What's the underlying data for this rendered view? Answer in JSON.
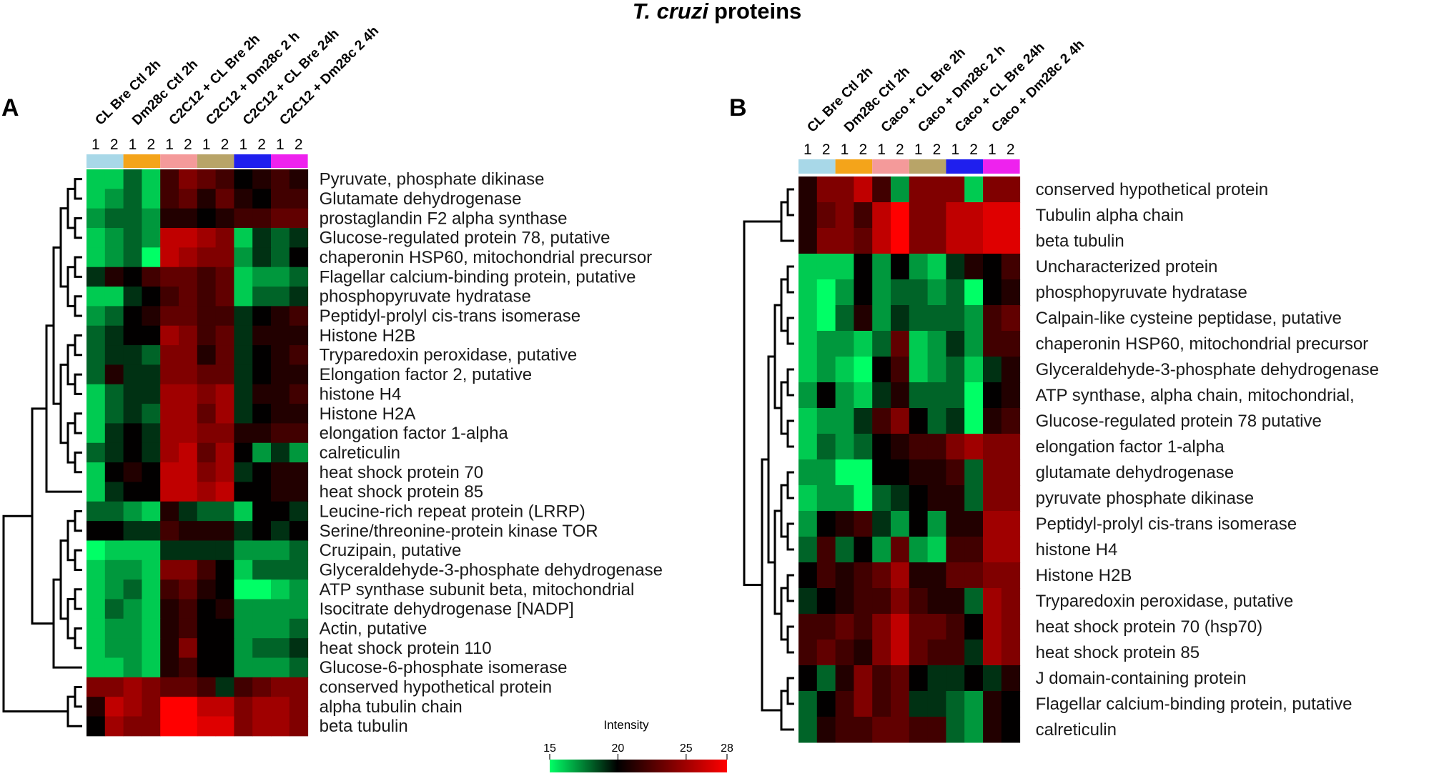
{
  "figure": {
    "title_italic": "T. cruzi",
    "title_rest": "proteins"
  },
  "chart_data": [
    {
      "type": "heatmap",
      "panel": "A",
      "columns": [
        "CL Bre Ctl 2h",
        "Dm28c Ctl 2h",
        "C2C12 + CL Bre 2h",
        "C2C12 + Dm28c 2 h",
        "C2C12 + CL Bre 24h",
        "C2C12 + Dm28c 2 4h"
      ],
      "column_colors": [
        "#a8d8e8",
        "#f4a41a",
        "#f49a9a",
        "#b8a468",
        "#1f1fee",
        "#ee22ee"
      ],
      "replicates": [
        "1",
        "2"
      ],
      "rows": [
        "Pyruvate, phosphate dikinase",
        "Glutamate dehydrogenase",
        "prostaglandin F2 alpha synthase",
        "Glucose-regulated protein 78, putative",
        "chaperonin HSP60, mitochondrial precursor",
        "Flagellar calcium-binding protein, putative",
        "phosphopyruvate hydratase",
        "Peptidyl-prolyl cis-trans isomerase",
        "Histone H2B",
        "Tryparedoxin peroxidase, putative",
        "Elongation factor 2, putative",
        "histone H4",
        "Histone H2A",
        "elongation factor 1-alpha",
        "calreticulin",
        "heat shock protein 70",
        "heat shock protein 85",
        "Leucine-rich repeat protein (LRRP)",
        "Serine/threonine-protein kinase TOR",
        "Cruzipain, putative",
        "Glyceraldehyde-3-phosphate dehydrogenase",
        "ATP synthase subunit beta, mitochondrial",
        "Isocitrate dehydrogenase [NADP]",
        "Actin, putative",
        "heat shock protein 110",
        "Glucose-6-phosphate isomerase",
        "conserved hypothetical protein",
        "alpha tubulin chain",
        "beta tubulin"
      ],
      "values": [
        [
          16,
          16,
          18,
          16,
          22,
          24,
          23,
          22,
          20,
          21,
          22,
          21
        ],
        [
          16,
          17,
          18,
          16,
          22,
          23,
          21,
          23,
          21,
          20,
          22,
          22
        ],
        [
          17,
          18,
          18,
          17,
          21,
          21,
          20,
          21,
          22,
          22,
          23,
          23
        ],
        [
          16,
          17,
          18,
          17,
          26,
          26,
          25,
          24,
          16,
          19,
          18,
          19
        ],
        [
          16,
          17,
          18,
          15,
          26,
          25,
          24,
          24,
          17,
          19,
          18,
          20
        ],
        [
          19,
          21,
          20,
          22,
          23,
          23,
          22,
          23,
          16,
          17,
          17,
          18
        ],
        [
          16,
          16,
          19,
          20,
          22,
          23,
          22,
          23,
          16,
          18,
          18,
          19
        ],
        [
          17,
          18,
          20,
          21,
          23,
          23,
          22,
          22,
          19,
          20,
          21,
          22
        ],
        [
          18,
          19,
          20,
          20,
          25,
          24,
          22,
          23,
          19,
          21,
          21,
          21
        ],
        [
          18,
          19,
          19,
          18,
          24,
          24,
          21,
          23,
          19,
          20,
          21,
          22
        ],
        [
          18,
          21,
          19,
          19,
          24,
          24,
          23,
          23,
          19,
          20,
          21,
          21
        ],
        [
          16,
          18,
          19,
          19,
          25,
          25,
          24,
          25,
          19,
          21,
          21,
          22
        ],
        [
          16,
          18,
          19,
          18,
          25,
          25,
          23,
          25,
          19,
          20,
          21,
          21
        ],
        [
          16,
          19,
          20,
          19,
          25,
          25,
          24,
          24,
          21,
          21,
          22,
          22
        ],
        [
          18,
          19,
          20,
          19,
          25,
          26,
          23,
          25,
          20,
          17,
          19,
          17
        ],
        [
          16,
          20,
          21,
          20,
          26,
          26,
          24,
          25,
          19,
          20,
          21,
          21
        ],
        [
          16,
          19,
          20,
          20,
          26,
          26,
          25,
          26,
          20,
          20,
          21,
          21
        ],
        [
          18,
          18,
          17,
          16,
          21,
          19,
          18,
          18,
          16,
          20,
          20,
          19
        ],
        [
          20,
          20,
          19,
          19,
          22,
          21,
          21,
          21,
          19,
          20,
          19,
          20
        ],
        [
          15,
          16,
          16,
          16,
          19,
          19,
          19,
          19,
          17,
          17,
          17,
          18
        ],
        [
          16,
          17,
          17,
          16,
          24,
          24,
          22,
          20,
          16,
          18,
          18,
          18
        ],
        [
          16,
          17,
          18,
          16,
          22,
          23,
          21,
          20,
          15,
          15,
          16,
          17
        ],
        [
          16,
          18,
          17,
          16,
          21,
          22,
          20,
          21,
          17,
          17,
          17,
          17
        ],
        [
          16,
          17,
          17,
          16,
          21,
          22,
          20,
          20,
          17,
          17,
          17,
          18
        ],
        [
          16,
          17,
          17,
          16,
          21,
          24,
          20,
          20,
          17,
          18,
          18,
          19
        ],
        [
          16,
          16,
          17,
          16,
          21,
          22,
          20,
          20,
          17,
          17,
          17,
          18
        ],
        [
          24,
          24,
          25,
          24,
          23,
          23,
          22,
          19,
          22,
          23,
          24,
          24
        ],
        [
          21,
          26,
          25,
          24,
          28,
          28,
          26,
          26,
          24,
          25,
          25,
          24
        ],
        [
          20,
          25,
          24,
          24,
          28,
          28,
          27,
          27,
          24,
          25,
          25,
          24
        ]
      ],
      "cluster_groups": [
        "1-17",
        "18-26",
        "27-29"
      ]
    },
    {
      "type": "heatmap",
      "panel": "B",
      "columns": [
        "CL Bre Ctl 2h",
        "Dm28c Ctl 2h",
        "Caco + CL Bre 2h",
        "Caco + Dm28c 2 h",
        "Caco + CL Bre 24h",
        "Caco + Dm28c 2 4h"
      ],
      "column_colors": [
        "#a8d8e8",
        "#f4a41a",
        "#f49a9a",
        "#b8a468",
        "#1f1fee",
        "#ee22ee"
      ],
      "replicates": [
        "1",
        "2"
      ],
      "rows": [
        "conserved hypothetical protein",
        "Tubulin alpha chain",
        "beta tubulin",
        "Uncharacterized protein",
        "phosphopyruvate hydratase",
        "Calpain-like cysteine peptidase, putative",
        "chaperonin HSP60, mitochondrial precursor",
        "Glyceraldehyde-3-phosphate dehydrogenase",
        "ATP synthase, alpha chain, mitochondrial,",
        "Glucose-regulated protein 78 putative",
        "elongation factor 1-alpha",
        "glutamate dehydrogenase",
        "pyruvate phosphate dikinase",
        "Peptidyl-prolyl cis-trans isomerase",
        "histone H4",
        "Histone H2B",
        "Tryparedoxin peroxidase, putative",
        "heat shock protein 70 (hsp70)",
        "heat shock protein 85",
        "J domain-containing protein",
        "Flagellar calcium-binding protein, putative",
        "calreticulin"
      ],
      "values": [
        [
          21,
          24,
          24,
          26,
          22,
          17,
          24,
          24,
          24,
          16,
          24,
          24
        ],
        [
          21,
          23,
          24,
          22,
          26,
          28,
          24,
          24,
          26,
          26,
          27,
          27
        ],
        [
          21,
          24,
          24,
          23,
          26,
          28,
          24,
          24,
          26,
          26,
          27,
          27
        ],
        [
          16,
          16,
          16,
          20,
          17,
          20,
          17,
          16,
          19,
          21,
          20,
          22
        ],
        [
          16,
          15,
          17,
          20,
          17,
          18,
          18,
          17,
          18,
          15,
          20,
          21
        ],
        [
          16,
          15,
          18,
          21,
          17,
          19,
          18,
          18,
          18,
          17,
          22,
          23
        ],
        [
          16,
          17,
          17,
          16,
          18,
          23,
          16,
          17,
          19,
          17,
          22,
          22
        ],
        [
          16,
          17,
          16,
          15,
          20,
          22,
          16,
          17,
          18,
          16,
          19,
          21
        ],
        [
          17,
          20,
          17,
          16,
          19,
          21,
          18,
          18,
          18,
          15,
          20,
          21
        ],
        [
          16,
          17,
          17,
          19,
          22,
          24,
          20,
          18,
          19,
          15,
          21,
          22
        ],
        [
          16,
          18,
          17,
          18,
          20,
          21,
          22,
          22,
          24,
          25,
          24,
          24
        ],
        [
          17,
          17,
          15,
          15,
          20,
          20,
          21,
          21,
          22,
          18,
          24,
          24
        ],
        [
          16,
          17,
          17,
          15,
          18,
          19,
          20,
          21,
          21,
          18,
          24,
          24
        ],
        [
          17,
          20,
          21,
          22,
          19,
          17,
          20,
          17,
          21,
          21,
          25,
          25
        ],
        [
          18,
          22,
          18,
          20,
          17,
          23,
          17,
          16,
          22,
          22,
          25,
          25
        ],
        [
          20,
          22,
          21,
          22,
          23,
          25,
          21,
          21,
          23,
          23,
          24,
          24
        ],
        [
          19,
          20,
          21,
          22,
          22,
          24,
          22,
          21,
          21,
          18,
          25,
          24
        ],
        [
          22,
          22,
          23,
          22,
          24,
          26,
          23,
          23,
          22,
          20,
          25,
          24
        ],
        [
          22,
          23,
          22,
          21,
          24,
          26,
          23,
          22,
          22,
          19,
          25,
          24
        ],
        [
          20,
          18,
          21,
          24,
          22,
          23,
          20,
          19,
          19,
          20,
          19,
          21
        ],
        [
          18,
          20,
          22,
          24,
          22,
          23,
          19,
          19,
          18,
          17,
          21,
          20
        ],
        [
          18,
          21,
          22,
          22,
          23,
          23,
          22,
          22,
          18,
          17,
          21,
          20
        ]
      ],
      "cluster_groups": [
        "1-3",
        "4-22"
      ]
    }
  ],
  "legend": {
    "title": "Intensity",
    "ticks": [
      "15",
      "20",
      "25",
      "28"
    ],
    "range": [
      15,
      28
    ],
    "colors": [
      "#00ff66",
      "#000000",
      "#ff0000"
    ]
  }
}
